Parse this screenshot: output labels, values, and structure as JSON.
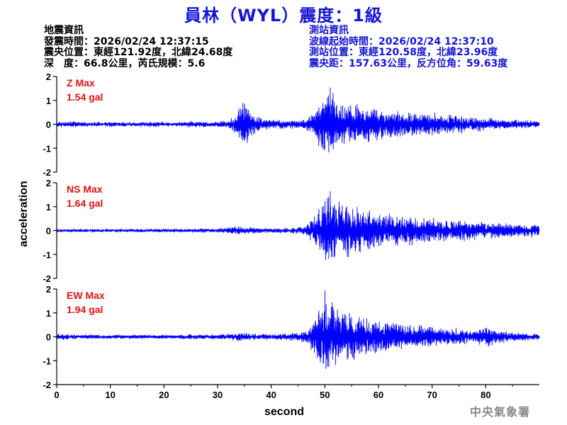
{
  "header": {
    "title": "員林（WYL）震度：1級",
    "quake_info_heading": "地震資訊",
    "origin_time": "發震時間：2026/02/24 12:37:15",
    "epicenter": "震央位置：東經121.92度，北緯24.68度",
    "depth_magnitude": "深　度：66.8公里，芮氏規模：5.6",
    "station_info_heading": "測站資訊",
    "wave_start_time": "波線起始時間：2026/02/24 12:37:10",
    "station_location": "測站位置：東經120.58度，北緯23.96度",
    "distance_azimuth": "震央距：157.63公里，反方位角：59.63度"
  },
  "footer": {
    "agency": "中央氣象署"
  },
  "colors": {
    "trace": "#0000ff",
    "annotation": "#dd1111",
    "title": "#1515d6",
    "axis": "#000000"
  },
  "chart_data": {
    "type": "line",
    "xlabel": "second",
    "ylabel": "acceleration",
    "xlim": [
      0,
      90
    ],
    "xticks": [
      0,
      10,
      20,
      30,
      40,
      50,
      60,
      70,
      80
    ],
    "ylim": [
      -2,
      2
    ],
    "yticks": [
      -2,
      -1,
      0,
      1,
      2
    ],
    "grid": false,
    "panels": [
      {
        "component": "Z",
        "max_label": "Z Max",
        "max_value": "1.54 gal",
        "peak": 1.54,
        "envelope": [
          [
            0,
            0.12
          ],
          [
            3,
            0.14
          ],
          [
            6,
            0.1
          ],
          [
            10,
            0.12
          ],
          [
            14,
            0.1
          ],
          [
            18,
            0.13
          ],
          [
            22,
            0.1
          ],
          [
            25,
            0.16
          ],
          [
            29,
            0.12
          ],
          [
            32,
            0.2
          ],
          [
            33.5,
            0.45
          ],
          [
            35,
            1.35
          ],
          [
            36,
            0.6
          ],
          [
            38,
            0.3
          ],
          [
            42,
            0.2
          ],
          [
            46,
            0.22
          ],
          [
            48,
            0.6
          ],
          [
            49.5,
            1.3
          ],
          [
            51,
            1.5
          ],
          [
            53,
            1.1
          ],
          [
            56,
            0.9
          ],
          [
            60,
            0.75
          ],
          [
            64,
            0.6
          ],
          [
            68,
            0.55
          ],
          [
            72,
            0.5
          ],
          [
            76,
            0.4
          ],
          [
            80,
            0.3
          ],
          [
            84,
            0.22
          ],
          [
            90,
            0.18
          ]
        ]
      },
      {
        "component": "NS",
        "max_label": "NS Max",
        "max_value": "1.64 gal",
        "peak": 1.64,
        "envelope": [
          [
            0,
            0.08
          ],
          [
            10,
            0.08
          ],
          [
            20,
            0.09
          ],
          [
            30,
            0.1
          ],
          [
            34,
            0.2
          ],
          [
            36,
            0.14
          ],
          [
            40,
            0.12
          ],
          [
            45,
            0.15
          ],
          [
            47,
            0.3
          ],
          [
            49,
            1.2
          ],
          [
            51,
            1.6
          ],
          [
            53,
            1.3
          ],
          [
            56,
            1.1
          ],
          [
            60,
            0.85
          ],
          [
            64,
            0.7
          ],
          [
            68,
            0.6
          ],
          [
            72,
            0.5
          ],
          [
            76,
            0.45
          ],
          [
            80,
            0.4
          ],
          [
            84,
            0.32
          ],
          [
            90,
            0.28
          ]
        ]
      },
      {
        "component": "EW",
        "max_label": "EW Max",
        "max_value": "1.94 gal",
        "peak": 1.94,
        "envelope": [
          [
            0,
            0.15
          ],
          [
            5,
            0.1
          ],
          [
            10,
            0.1
          ],
          [
            20,
            0.1
          ],
          [
            25,
            0.12
          ],
          [
            30,
            0.12
          ],
          [
            34,
            0.2
          ],
          [
            36,
            0.15
          ],
          [
            40,
            0.12
          ],
          [
            45,
            0.2
          ],
          [
            47,
            0.4
          ],
          [
            49,
            1.3
          ],
          [
            50,
            1.9
          ],
          [
            52,
            1.5
          ],
          [
            55,
            1.1
          ],
          [
            58,
            0.85
          ],
          [
            62,
            0.7
          ],
          [
            66,
            0.55
          ],
          [
            70,
            0.45
          ],
          [
            74,
            0.4
          ],
          [
            78,
            0.3
          ],
          [
            80,
            0.55
          ],
          [
            81,
            0.4
          ],
          [
            84,
            0.22
          ],
          [
            90,
            0.15
          ]
        ]
      }
    ]
  }
}
